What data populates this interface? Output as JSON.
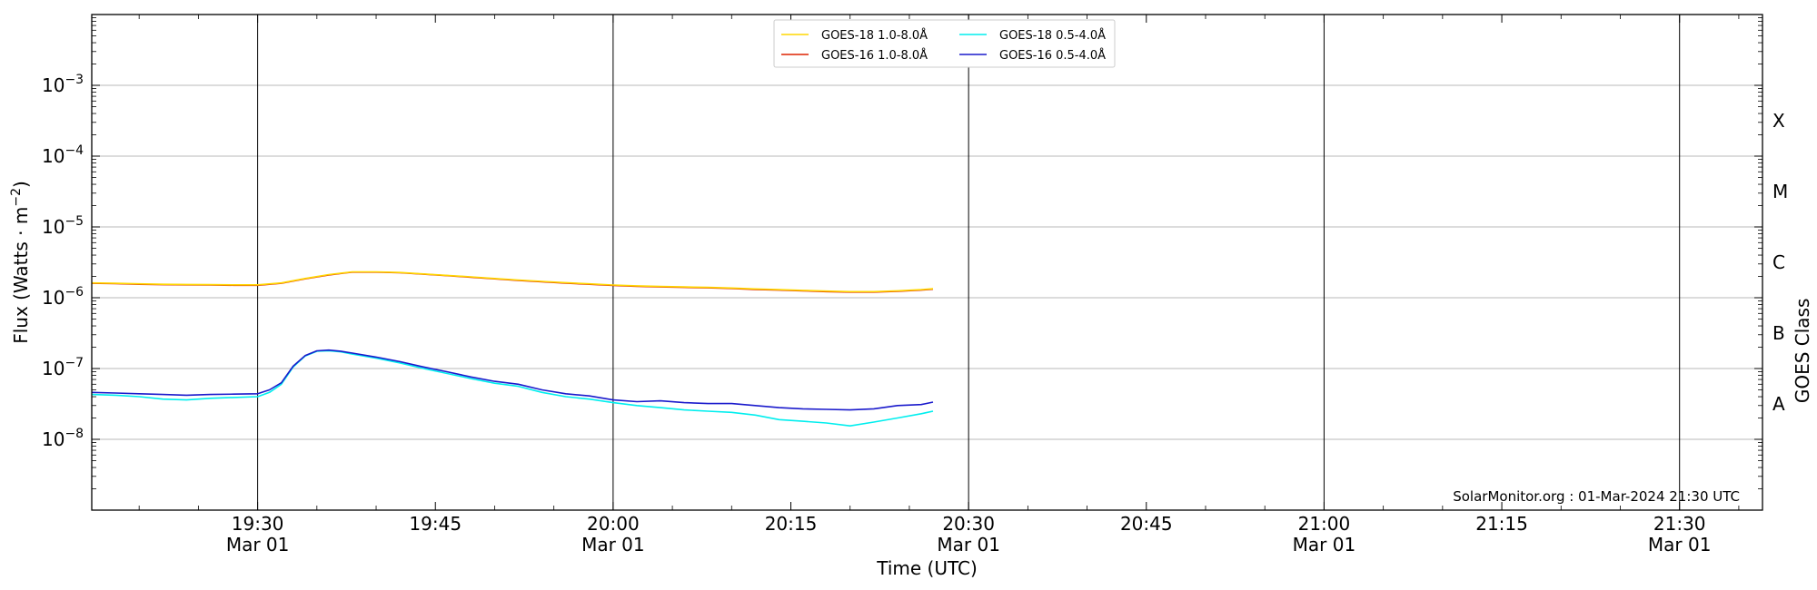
{
  "chart_data": {
    "type": "line",
    "title": "",
    "xlabel": "Time (UTC)",
    "ylabel_main": "Flux (Watts · m",
    "ylabel_exp": "−2",
    "ylabel_close": ")",
    "right_axis_label": "GOES Class",
    "y_scale": "log",
    "ylim": [
      1e-09,
      0.01
    ],
    "x_range_minutes": [
      "19:16",
      "21:37"
    ],
    "x_ticks": [
      {
        "minute": "19:30",
        "time": "19:30",
        "date": "Mar 01"
      },
      {
        "minute": "19:45",
        "time": "19:45",
        "date": ""
      },
      {
        "minute": "20:00",
        "time": "20:00",
        "date": "Mar 01"
      },
      {
        "minute": "20:15",
        "time": "20:15",
        "date": ""
      },
      {
        "minute": "20:30",
        "time": "20:30",
        "date": "Mar 01"
      },
      {
        "minute": "20:45",
        "time": "20:45",
        "date": ""
      },
      {
        "minute": "21:00",
        "time": "21:00",
        "date": "Mar 01"
      },
      {
        "minute": "21:15",
        "time": "21:15",
        "date": ""
      },
      {
        "minute": "21:30",
        "time": "21:30",
        "date": "Mar 01"
      }
    ],
    "y_ticks": [
      {
        "exp": -8,
        "label_base": "10",
        "label_exp": "−8"
      },
      {
        "exp": -7,
        "label_base": "10",
        "label_exp": "−7"
      },
      {
        "exp": -6,
        "label_base": "10",
        "label_exp": "−6"
      },
      {
        "exp": -5,
        "label_base": "10",
        "label_exp": "−5"
      },
      {
        "exp": -4,
        "label_base": "10",
        "label_exp": "−4"
      },
      {
        "exp": -3,
        "label_base": "10",
        "label_exp": "−3"
      }
    ],
    "goes_classes": [
      {
        "label": "A",
        "exp": -8
      },
      {
        "label": "B",
        "exp": -7
      },
      {
        "label": "C",
        "exp": -6
      },
      {
        "label": "M",
        "exp": -5
      },
      {
        "label": "X",
        "exp": -4
      }
    ],
    "vertical_lines_minutes": [
      "19:30",
      "20:00",
      "20:30",
      "21:00",
      "21:30"
    ],
    "grid": "horizontal at decades",
    "legend_placement": "top-center",
    "legend": [
      {
        "name": "GOES-18 1.0-8.0Å",
        "color": "#ffd700",
        "col": 0,
        "row": 0
      },
      {
        "name": "GOES-16 1.0-8.0Å",
        "color": "#dd2200",
        "col": 0,
        "row": 1
      },
      {
        "name": "GOES-18 0.5-4.0Å",
        "color": "#00eeee",
        "col": 1,
        "row": 0
      },
      {
        "name": "GOES-16 0.5-4.0Å",
        "color": "#1a1acc",
        "col": 1,
        "row": 1
      }
    ],
    "series": [
      {
        "name": "GOES-16 1.0-8.0Å",
        "color": "#dd2200",
        "x": [
          "19:16",
          "19:18",
          "19:20",
          "19:22",
          "19:24",
          "19:26",
          "19:28",
          "19:30",
          "19:32",
          "19:34",
          "19:36",
          "19:38",
          "19:40",
          "19:42",
          "19:44",
          "19:46",
          "19:48",
          "19:50",
          "19:52",
          "19:54",
          "19:56",
          "19:58",
          "20:00",
          "20:02",
          "20:04",
          "20:06",
          "20:08",
          "20:10",
          "20:12",
          "20:14",
          "20:16",
          "20:18",
          "20:20",
          "20:22",
          "20:24",
          "20:26",
          "20:27"
        ],
        "y": [
          1.6e-06,
          1.58e-06,
          1.55e-06,
          1.53e-06,
          1.52e-06,
          1.51e-06,
          1.5e-06,
          1.5e-06,
          1.6e-06,
          1.85e-06,
          2.1e-06,
          2.3e-06,
          2.3e-06,
          2.25e-06,
          2.15e-06,
          2.05e-06,
          1.95e-06,
          1.85e-06,
          1.76e-06,
          1.68e-06,
          1.61e-06,
          1.55e-06,
          1.49e-06,
          1.45e-06,
          1.42e-06,
          1.4e-06,
          1.38e-06,
          1.35e-06,
          1.31e-06,
          1.28e-06,
          1.25e-06,
          1.22e-06,
          1.2e-06,
          1.2e-06,
          1.23e-06,
          1.28e-06,
          1.32e-06
        ]
      },
      {
        "name": "GOES-18 1.0-8.0Å",
        "color": "#ffd700",
        "x": [
          "19:16",
          "19:18",
          "19:20",
          "19:22",
          "19:24",
          "19:26",
          "19:28",
          "19:30",
          "19:32",
          "19:34",
          "19:36",
          "19:38",
          "19:40",
          "19:42",
          "19:44",
          "19:46",
          "19:48",
          "19:50",
          "19:52",
          "19:54",
          "19:56",
          "19:58",
          "20:00",
          "20:02",
          "20:04",
          "20:06",
          "20:08",
          "20:10",
          "20:12",
          "20:14",
          "20:16",
          "20:18",
          "20:20",
          "20:22",
          "20:24",
          "20:26",
          "20:27"
        ],
        "y": [
          1.62e-06,
          1.6e-06,
          1.57e-06,
          1.55e-06,
          1.54e-06,
          1.53e-06,
          1.52e-06,
          1.52e-06,
          1.62e-06,
          1.87e-06,
          2.12e-06,
          2.32e-06,
          2.32e-06,
          2.27e-06,
          2.17e-06,
          2.07e-06,
          1.97e-06,
          1.87e-06,
          1.78e-06,
          1.7e-06,
          1.63e-06,
          1.57e-06,
          1.51e-06,
          1.47e-06,
          1.44e-06,
          1.42e-06,
          1.4e-06,
          1.37e-06,
          1.33e-06,
          1.3e-06,
          1.27e-06,
          1.24e-06,
          1.22e-06,
          1.22e-06,
          1.25e-06,
          1.3e-06,
          1.34e-06
        ]
      },
      {
        "name": "GOES-18 0.5-4.0Å",
        "color": "#00eeee",
        "x": [
          "19:16",
          "19:18",
          "19:20",
          "19:22",
          "19:24",
          "19:26",
          "19:28",
          "19:30",
          "19:31",
          "19:32",
          "19:33",
          "19:34",
          "19:35",
          "19:36",
          "19:37",
          "19:38",
          "19:40",
          "19:42",
          "19:44",
          "19:46",
          "19:48",
          "19:50",
          "19:52",
          "19:54",
          "19:56",
          "19:58",
          "20:00",
          "20:02",
          "20:04",
          "20:06",
          "20:08",
          "20:10",
          "20:12",
          "20:14",
          "20:16",
          "20:18",
          "20:20",
          "20:22",
          "20:24",
          "20:26",
          "20:27"
        ],
        "y": [
          4.3e-08,
          4.2e-08,
          4e-08,
          3.7e-08,
          3.6e-08,
          3.8e-08,
          3.9e-08,
          4e-08,
          4.6e-08,
          6e-08,
          1.05e-07,
          1.5e-07,
          1.75e-07,
          1.78e-07,
          1.72e-07,
          1.6e-07,
          1.4e-07,
          1.2e-07,
          1e-07,
          8.5e-08,
          7.2e-08,
          6.2e-08,
          5.6e-08,
          4.6e-08,
          4e-08,
          3.7e-08,
          3.3e-08,
          3e-08,
          2.8e-08,
          2.6e-08,
          2.5e-08,
          2.4e-08,
          2.2e-08,
          1.9e-08,
          1.8e-08,
          1.7e-08,
          1.55e-08,
          1.75e-08,
          2e-08,
          2.3e-08,
          2.5e-08
        ]
      },
      {
        "name": "GOES-16 0.5-4.0Å",
        "color": "#1a1acc",
        "x": [
          "19:16",
          "19:18",
          "19:20",
          "19:22",
          "19:24",
          "19:26",
          "19:28",
          "19:30",
          "19:31",
          "19:32",
          "19:33",
          "19:34",
          "19:35",
          "19:36",
          "19:37",
          "19:38",
          "19:40",
          "19:42",
          "19:44",
          "19:46",
          "19:48",
          "19:50",
          "19:52",
          "19:54",
          "19:56",
          "19:58",
          "20:00",
          "20:02",
          "20:04",
          "20:06",
          "20:08",
          "20:10",
          "20:12",
          "20:14",
          "20:16",
          "20:18",
          "20:20",
          "20:22",
          "20:24",
          "20:26",
          "20:27"
        ],
        "y": [
          4.6e-08,
          4.5e-08,
          4.4e-08,
          4.3e-08,
          4.2e-08,
          4.3e-08,
          4.35e-08,
          4.4e-08,
          5e-08,
          6.3e-08,
          1.08e-07,
          1.52e-07,
          1.78e-07,
          1.82e-07,
          1.76e-07,
          1.65e-07,
          1.45e-07,
          1.25e-07,
          1.05e-07,
          9e-08,
          7.6e-08,
          6.6e-08,
          6e-08,
          5e-08,
          4.4e-08,
          4.1e-08,
          3.6e-08,
          3.4e-08,
          3.5e-08,
          3.3e-08,
          3.2e-08,
          3.2e-08,
          3e-08,
          2.8e-08,
          2.7e-08,
          2.65e-08,
          2.6e-08,
          2.7e-08,
          3e-08,
          3.1e-08,
          3.35e-08
        ]
      }
    ],
    "credit": "SolarMonitor.org : 01-Mar-2024 21:30 UTC"
  }
}
